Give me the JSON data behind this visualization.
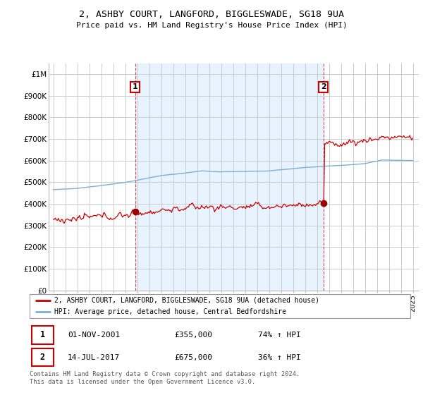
{
  "title": "2, ASHBY COURT, LANGFORD, BIGGLESWADE, SG18 9UA",
  "subtitle": "Price paid vs. HM Land Registry's House Price Index (HPI)",
  "ylim": [
    0,
    1050000
  ],
  "yticks": [
    0,
    100000,
    200000,
    300000,
    400000,
    500000,
    600000,
    700000,
    800000,
    900000,
    1000000
  ],
  "ytick_labels": [
    "£0",
    "£100K",
    "£200K",
    "£300K",
    "£400K",
    "£500K",
    "£600K",
    "£700K",
    "£800K",
    "£900K",
    "£1M"
  ],
  "sale1_date": 2001.83,
  "sale1_price": 355000,
  "sale1_label": "1",
  "sale1_text": "01-NOV-2001",
  "sale1_amount": "£355,000",
  "sale1_hpi": "74% ↑ HPI",
  "sale2_date": 2017.53,
  "sale2_price": 675000,
  "sale2_label": "2",
  "sale2_text": "14-JUL-2017",
  "sale2_amount": "£675,000",
  "sale2_hpi": "36% ↑ HPI",
  "line1_color": "#cc0000",
  "line2_color": "#7ab0d4",
  "vline_color": "#cc0000",
  "shade_color": "#ddeeff",
  "grid_color": "#cccccc",
  "bg_color": "#ffffff",
  "legend_label1": "2, ASHBY COURT, LANGFORD, BIGGLESWADE, SG18 9UA (detached house)",
  "legend_label2": "HPI: Average price, detached house, Central Bedfordshire",
  "footnote": "Contains HM Land Registry data © Crown copyright and database right 2024.\nThis data is licensed under the Open Government Licence v3.0.",
  "xstart": 1995,
  "xend": 2025
}
